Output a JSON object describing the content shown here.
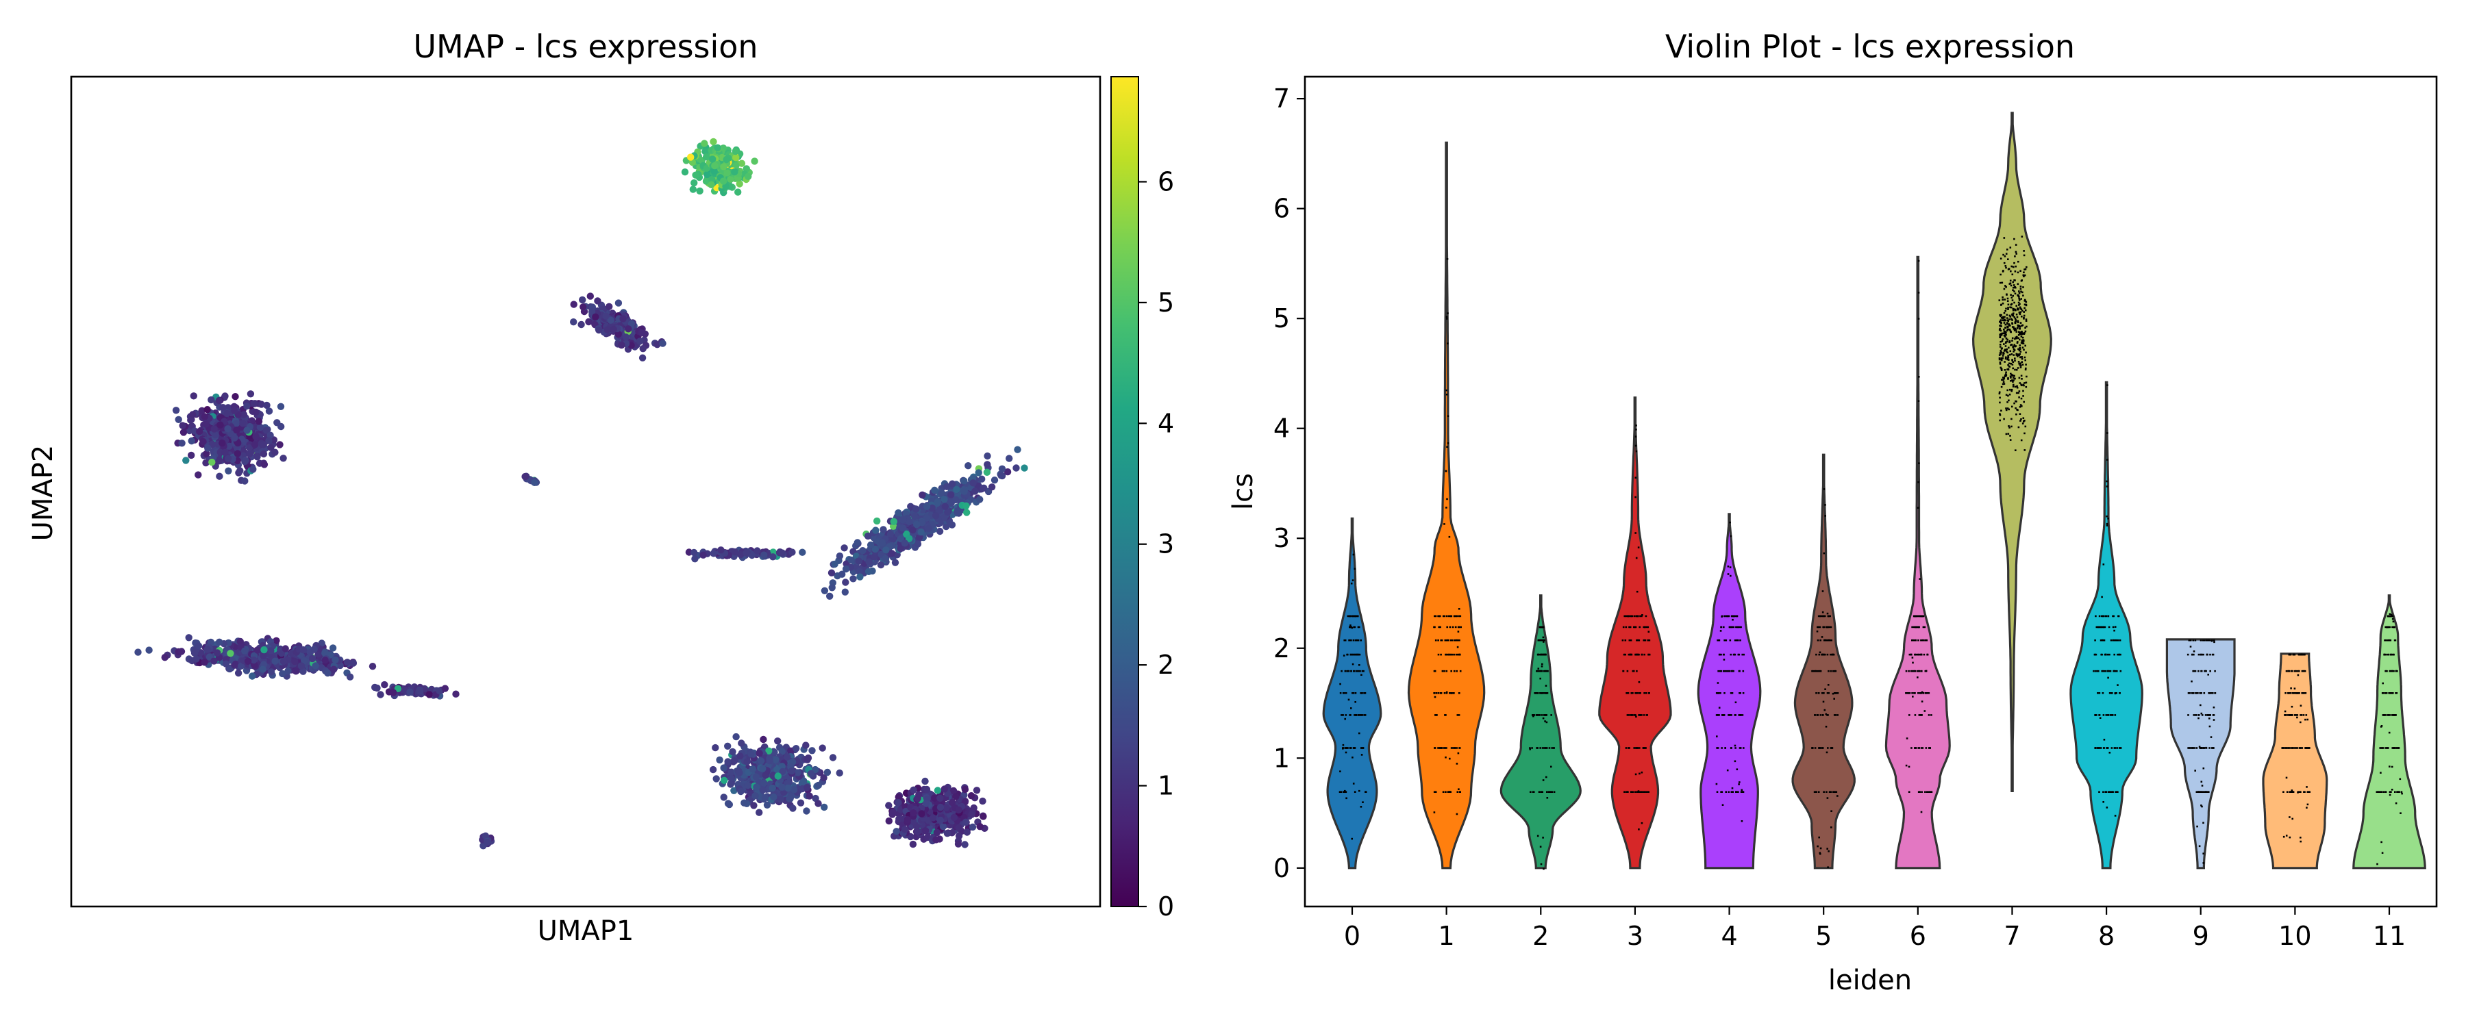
{
  "chart_data": [
    {
      "type": "scatter",
      "title": "UMAP - lcs expression",
      "xlabel": "UMAP1",
      "ylabel": "UMAP2",
      "colormap": "viridis",
      "colorbar": {
        "min": 0,
        "max": 6.87,
        "ticks": [
          "0",
          "1",
          "2",
          "3",
          "4",
          "5",
          "6"
        ]
      },
      "xlim": [
        0,
        100
      ],
      "ylim": [
        0,
        100
      ],
      "clusters": [
        {
          "name": "top cluster",
          "cx": 63,
          "cy": 89,
          "rx": 4.5,
          "ry": 4.5,
          "angle": 0,
          "n": 260,
          "mean_expr": 4.8
        },
        {
          "name": "crescent",
          "cx": 53,
          "cy": 70,
          "rx": 7.5,
          "ry": 2.8,
          "angle": -38,
          "n": 200,
          "mean_expr": 1.1
        },
        {
          "name": "left round",
          "cx": 15.5,
          "cy": 57,
          "rx": 7,
          "ry": 7,
          "angle": 0,
          "n": 480,
          "mean_expr": 1.0
        },
        {
          "name": "small strand",
          "cx": 44.5,
          "cy": 51.5,
          "rx": 1.6,
          "ry": 0.5,
          "angle": -38,
          "n": 14,
          "mean_expr": 1.3
        },
        {
          "name": "right elongated",
          "cx": 82,
          "cy": 46,
          "rx": 17,
          "ry": 3.5,
          "angle": 42,
          "n": 560,
          "mean_expr": 1.5
        },
        {
          "name": "right tail",
          "cx": 66,
          "cy": 42.5,
          "rx": 8,
          "ry": 1.0,
          "angle": 0,
          "n": 70,
          "mean_expr": 1.2
        },
        {
          "name": "lower left elongated",
          "cx": 19,
          "cy": 30,
          "rx": 14,
          "ry": 3,
          "angle": -5,
          "n": 470,
          "mean_expr": 1.2
        },
        {
          "name": "lower left tail",
          "cx": 33,
          "cy": 26,
          "rx": 7,
          "ry": 1.1,
          "angle": -5,
          "n": 70,
          "mean_expr": 1.0
        },
        {
          "name": "bottom big left",
          "cx": 68,
          "cy": 16,
          "rx": 8,
          "ry": 6.5,
          "angle": 0,
          "n": 440,
          "mean_expr": 1.4
        },
        {
          "name": "bottom big right",
          "cx": 84,
          "cy": 11,
          "rx": 7,
          "ry": 5,
          "angle": 0,
          "n": 380,
          "mean_expr": 0.9
        },
        {
          "name": "bottom small",
          "cx": 40.5,
          "cy": 8,
          "rx": 0.8,
          "ry": 1.6,
          "angle": -30,
          "n": 14,
          "mean_expr": 1.3
        }
      ]
    },
    {
      "type": "violin",
      "title": "Violin Plot - lcs expression",
      "xlabel": "leiden",
      "ylabel": "lcs",
      "ylim": [
        -0.35,
        7.2
      ],
      "yticks": [
        "0",
        "1",
        "2",
        "3",
        "4",
        "5",
        "6",
        "7"
      ],
      "categories": [
        "0",
        "1",
        "2",
        "3",
        "4",
        "5",
        "6",
        "7",
        "8",
        "9",
        "10",
        "11"
      ],
      "series": [
        {
          "category": "0",
          "color": "#1f77b4",
          "max": 3.18,
          "profile": [
            [
              0.0,
              0.08
            ],
            [
              0.7,
              0.62
            ],
            [
              1.1,
              0.42
            ],
            [
              1.4,
              0.72
            ],
            [
              2.0,
              0.35
            ],
            [
              2.6,
              0.08
            ]
          ]
        },
        {
          "category": "1",
          "color": "#ff7f0e",
          "max": 6.6,
          "profile": [
            [
              0.0,
              0.1
            ],
            [
              0.7,
              0.62
            ],
            [
              1.1,
              0.72
            ],
            [
              1.6,
              0.95
            ],
            [
              2.3,
              0.62
            ],
            [
              2.9,
              0.3
            ],
            [
              3.2,
              0.1
            ],
            [
              4.0,
              0.04
            ]
          ]
        },
        {
          "category": "2",
          "color": "#279e68",
          "max": 2.48,
          "profile": [
            [
              0.0,
              0.12
            ],
            [
              0.35,
              0.3
            ],
            [
              0.7,
              1.0
            ],
            [
              1.1,
              0.5
            ],
            [
              1.7,
              0.25
            ]
          ]
        },
        {
          "category": "3",
          "color": "#d62728",
          "max": 4.28,
          "profile": [
            [
              0.0,
              0.12
            ],
            [
              0.7,
              0.58
            ],
            [
              1.1,
              0.4
            ],
            [
              1.4,
              0.9
            ],
            [
              1.9,
              0.7
            ],
            [
              2.6,
              0.28
            ],
            [
              3.2,
              0.08
            ]
          ]
        },
        {
          "category": "4",
          "color": "#aa40fc",
          "max": 3.22,
          "profile": [
            [
              0.0,
              0.6
            ],
            [
              0.7,
              0.72
            ],
            [
              1.1,
              0.55
            ],
            [
              1.6,
              0.78
            ],
            [
              2.3,
              0.4
            ],
            [
              2.9,
              0.06
            ]
          ]
        },
        {
          "category": "5",
          "color": "#8c564b",
          "max": 3.76,
          "profile": [
            [
              0.0,
              0.22
            ],
            [
              0.4,
              0.3
            ],
            [
              0.8,
              0.78
            ],
            [
              1.1,
              0.5
            ],
            [
              1.5,
              0.72
            ],
            [
              2.1,
              0.3
            ],
            [
              2.8,
              0.06
            ]
          ]
        },
        {
          "category": "6",
          "color": "#e377c2",
          "max": 5.56,
          "profile": [
            [
              0.0,
              0.55
            ],
            [
              0.5,
              0.35
            ],
            [
              0.8,
              0.55
            ],
            [
              1.1,
              0.8
            ],
            [
              1.5,
              0.72
            ],
            [
              2.0,
              0.35
            ],
            [
              2.5,
              0.1
            ],
            [
              3.0,
              0.03
            ]
          ]
        },
        {
          "category": "7",
          "color": "#b5bd61",
          "max": 6.87,
          "min": 0.7,
          "profile": [
            [
              0.7,
              0.0
            ],
            [
              1.8,
              0.04
            ],
            [
              2.7,
              0.1
            ],
            [
              3.5,
              0.3
            ],
            [
              4.2,
              0.7
            ],
            [
              4.8,
              0.98
            ],
            [
              5.3,
              0.72
            ],
            [
              5.9,
              0.3
            ],
            [
              6.4,
              0.1
            ],
            [
              6.87,
              0.0
            ]
          ]
        },
        {
          "category": "8",
          "color": "#17becf",
          "max": 4.42,
          "profile": [
            [
              0.0,
              0.1
            ],
            [
              0.7,
              0.4
            ],
            [
              1.0,
              0.75
            ],
            [
              1.6,
              0.9
            ],
            [
              2.1,
              0.6
            ],
            [
              2.6,
              0.2
            ],
            [
              3.2,
              0.05
            ]
          ]
        },
        {
          "category": "9",
          "color": "#aec7e8",
          "max": 2.08,
          "profile": [
            [
              0.0,
              0.08
            ],
            [
              0.5,
              0.2
            ],
            [
              0.9,
              0.4
            ],
            [
              1.3,
              0.75
            ],
            [
              1.8,
              0.85
            ],
            [
              2.08,
              0.85
            ]
          ]
        },
        {
          "category": "10",
          "color": "#ffbb78",
          "max": 1.95,
          "profile": [
            [
              0.0,
              0.55
            ],
            [
              0.4,
              0.75
            ],
            [
              0.8,
              0.8
            ],
            [
              1.2,
              0.5
            ],
            [
              1.6,
              0.4
            ],
            [
              1.95,
              0.35
            ]
          ]
        },
        {
          "category": "11",
          "color": "#98df8a",
          "max": 2.48,
          "profile": [
            [
              0.0,
              0.9
            ],
            [
              0.5,
              0.65
            ],
            [
              1.0,
              0.4
            ],
            [
              1.6,
              0.3
            ],
            [
              2.1,
              0.22
            ],
            [
              2.48,
              0.0
            ]
          ]
        }
      ]
    }
  ]
}
